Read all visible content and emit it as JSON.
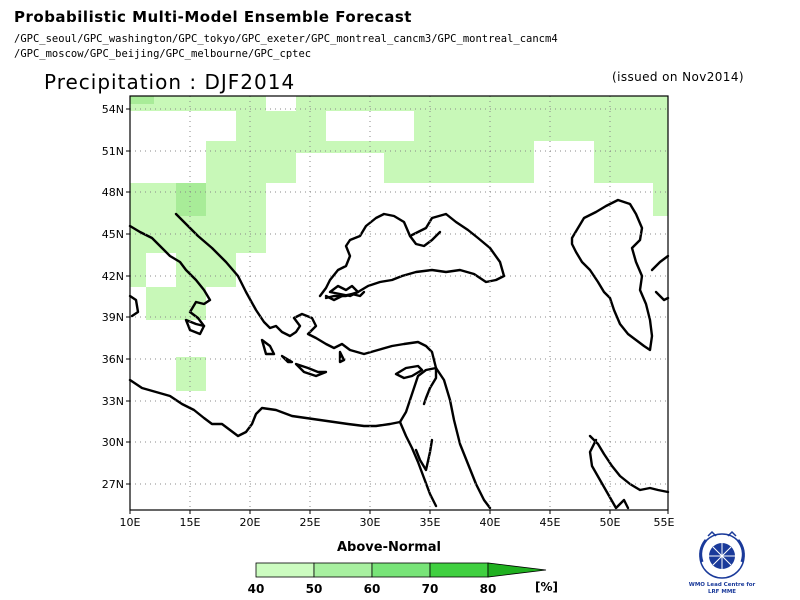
{
  "header": {
    "title": "Probabilistic Multi-Model Ensemble Forecast",
    "models": [
      "/GPC_seoul/GPC_washington/GPC_tokyo/GPC_exeter/GPC_montreal_cancm3/GPC_montreal_cancm4",
      "/GPC_moscow/GPC_beijing/GPC_melbourne/GPC_cptec"
    ]
  },
  "map": {
    "title": "Precipitation : DJF2014",
    "issued": "(issued on Nov2014)",
    "lat_ticks": [
      "54N",
      "51N",
      "48N",
      "45N",
      "42N",
      "39N",
      "36N",
      "33N",
      "30N",
      "27N"
    ],
    "lon_ticks": [
      "10E",
      "15E",
      "20E",
      "25E",
      "30E",
      "35E",
      "40E",
      "45E",
      "50E",
      "55E"
    ],
    "colors": {
      "light": "#c8f8b8",
      "medium": "#a8ec98",
      "coast": "#000000",
      "grid": "#888888"
    }
  },
  "legend": {
    "title": "Above-Normal",
    "labels": [
      "40",
      "50",
      "60",
      "70",
      "80"
    ],
    "unit": "[%]",
    "colors": [
      "#ccfcc0",
      "#a8f0a0",
      "#78e478",
      "#40d040",
      "#20b020"
    ]
  },
  "logo": {
    "caption_lines": [
      "WMO Lead Centre for",
      "LRF MME"
    ]
  }
}
